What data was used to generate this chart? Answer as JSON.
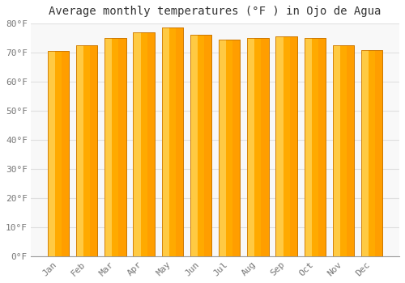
{
  "title": "Average monthly temperatures (°F ) in Ojo de Agua",
  "months": [
    "Jan",
    "Feb",
    "Mar",
    "Apr",
    "May",
    "Jun",
    "Jul",
    "Aug",
    "Sep",
    "Oct",
    "Nov",
    "Dec"
  ],
  "values": [
    70.5,
    72.5,
    75,
    77,
    78.5,
    76,
    74.5,
    75,
    75.5,
    75,
    72.5,
    71
  ],
  "bar_color_main": "#FFAA00",
  "bar_color_left": "#FFD050",
  "bar_color_right": "#FF8C00",
  "bar_edge_color": "#CC7700",
  "background_color": "#ffffff",
  "plot_bg_color": "#f8f8f8",
  "ylim": [
    0,
    80
  ],
  "yticks": [
    0,
    10,
    20,
    30,
    40,
    50,
    60,
    70,
    80
  ],
  "ytick_labels": [
    "0°F",
    "10°F",
    "20°F",
    "30°F",
    "40°F",
    "50°F",
    "60°F",
    "70°F",
    "80°F"
  ],
  "grid_color": "#e0e0e0",
  "title_fontsize": 10,
  "tick_fontsize": 8,
  "bar_width": 0.75
}
